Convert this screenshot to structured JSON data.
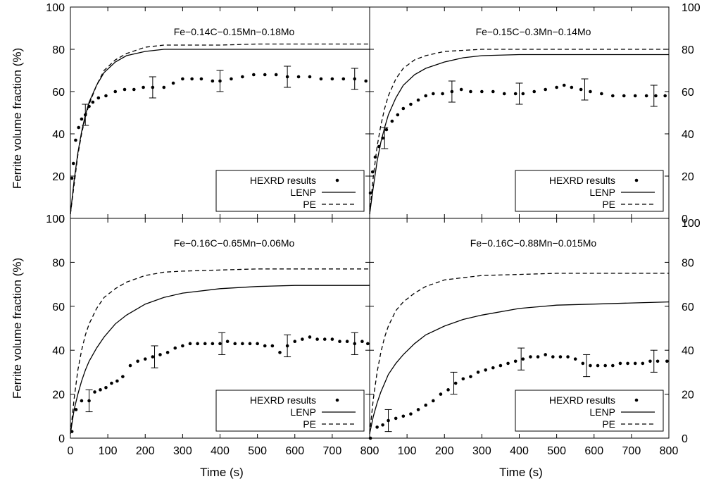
{
  "figure": {
    "ylabel": "Ferrite volume fraction (%)",
    "xlabel": "Time (s)",
    "colors": {
      "ink": "#000000",
      "background": "#ffffff"
    }
  },
  "chart_data": [
    {
      "type": "scatter",
      "title": "Fe−0.14C−0.15Mn−0.18Mo",
      "xlabel": "Time (s)",
      "ylabel": "Ferrite volume fraction (%)",
      "xlim": [
        0,
        800
      ],
      "ylim": [
        0,
        100
      ],
      "xticks": [
        "0",
        "100",
        "200",
        "300",
        "400",
        "500",
        "600",
        "700",
        "800"
      ],
      "yticks": [
        "0",
        "20",
        "40",
        "60",
        "80",
        "100"
      ],
      "legend_position": "bottom-right",
      "series": [
        {
          "name": "HEXRD results",
          "style": "points",
          "x": [
            4,
            8,
            14,
            22,
            30,
            40,
            50,
            60,
            75,
            95,
            120,
            145,
            170,
            195,
            220,
            250,
            275,
            300,
            325,
            350,
            380,
            400,
            430,
            460,
            490,
            520,
            550,
            580,
            610,
            640,
            670,
            700,
            730,
            760,
            790
          ],
          "y": [
            19,
            26,
            37,
            43,
            47,
            49,
            53,
            55,
            57,
            58,
            60,
            61,
            61,
            62,
            62,
            62,
            64,
            66,
            66,
            66,
            65,
            65,
            66,
            67,
            68,
            68,
            68,
            67,
            67,
            67,
            66,
            66,
            66,
            66,
            65
          ]
        },
        {
          "name": "LENP",
          "style": "solid",
          "x": [
            0,
            10,
            20,
            30,
            40,
            50,
            70,
            90,
            120,
            150,
            200,
            250,
            300,
            400,
            500,
            600,
            700,
            800
          ],
          "y": [
            2,
            18,
            31,
            41,
            49,
            55,
            63,
            69,
            74,
            77,
            79,
            80,
            80,
            80,
            80,
            80,
            80,
            80
          ]
        },
        {
          "name": "PE",
          "style": "dashed",
          "x": [
            0,
            10,
            20,
            30,
            40,
            50,
            70,
            90,
            120,
            150,
            200,
            250,
            300,
            400,
            500,
            600,
            700,
            800
          ],
          "y": [
            2,
            16,
            30,
            40,
            48,
            54,
            63,
            70,
            75,
            78,
            81,
            82,
            82,
            82,
            82.5,
            82.5,
            82.5,
            82.5
          ]
        }
      ],
      "error_bars": [
        {
          "x": 40,
          "y": 49,
          "err": 5
        },
        {
          "x": 220,
          "y": 62,
          "err": 5
        },
        {
          "x": 400,
          "y": 65,
          "err": 5
        },
        {
          "x": 580,
          "y": 67,
          "err": 5
        },
        {
          "x": 760,
          "y": 66,
          "err": 5
        }
      ]
    },
    {
      "type": "scatter",
      "title": "Fe−0.15C−0.3Mn−0.14Mo",
      "xlabel": "Time (s)",
      "ylabel": "Ferrite volume fraction (%)",
      "xlim": [
        0,
        800
      ],
      "ylim": [
        0,
        100
      ],
      "xticks": [
        "0",
        "100",
        "200",
        "300",
        "400",
        "500",
        "600",
        "700",
        "800"
      ],
      "yticks": [
        "0",
        "20",
        "40",
        "60",
        "80",
        "100"
      ],
      "legend_position": "bottom-right",
      "series": [
        {
          "name": "HEXRD results",
          "style": "points",
          "x": [
            2,
            8,
            15,
            25,
            35,
            45,
            60,
            75,
            90,
            110,
            130,
            150,
            170,
            195,
            220,
            245,
            270,
            300,
            330,
            360,
            390,
            410,
            440,
            470,
            500,
            520,
            540,
            565,
            590,
            620,
            650,
            680,
            710,
            740,
            765,
            790
          ],
          "y": [
            12,
            22,
            29,
            34,
            38,
            42,
            46,
            49,
            52,
            54,
            56,
            58,
            59,
            59,
            60,
            61,
            60,
            60,
            60,
            59,
            59,
            59,
            60,
            61,
            62,
            63,
            62,
            61,
            60,
            59,
            58,
            58,
            58,
            58,
            58,
            58
          ]
        },
        {
          "name": "LENP",
          "style": "solid",
          "x": [
            0,
            10,
            20,
            30,
            40,
            50,
            70,
            90,
            120,
            150,
            200,
            250,
            300,
            400,
            500,
            600,
            700,
            800
          ],
          "y": [
            2,
            15,
            27,
            36,
            43,
            49,
            57,
            63,
            68,
            71,
            74,
            76,
            77,
            77.5,
            77.5,
            77.5,
            77.5,
            77.5
          ]
        },
        {
          "name": "PE",
          "style": "dashed",
          "x": [
            0,
            10,
            20,
            30,
            40,
            50,
            70,
            90,
            120,
            150,
            200,
            250,
            300,
            400,
            500,
            600,
            700,
            800
          ],
          "y": [
            2,
            20,
            34,
            44,
            52,
            58,
            66,
            71,
            75,
            77,
            79,
            79.5,
            80,
            80,
            80,
            80,
            80,
            80
          ]
        }
      ],
      "error_bars": [
        {
          "x": 40,
          "y": 38,
          "err": 5
        },
        {
          "x": 220,
          "y": 60,
          "err": 5
        },
        {
          "x": 400,
          "y": 59,
          "err": 5
        },
        {
          "x": 575,
          "y": 61,
          "err": 5
        },
        {
          "x": 760,
          "y": 58,
          "err": 5
        }
      ]
    },
    {
      "type": "scatter",
      "title": "Fe−0.16C−0.65Mn−0.06Mo",
      "xlabel": "Time (s)",
      "ylabel": "Ferrite volume fraction (%)",
      "xlim": [
        0,
        800
      ],
      "ylim": [
        0,
        100
      ],
      "xticks": [
        "0",
        "100",
        "200",
        "300",
        "400",
        "500",
        "600",
        "700",
        "800"
      ],
      "yticks": [
        "0",
        "20",
        "40",
        "60",
        "80",
        "100"
      ],
      "legend_position": "bottom-right",
      "series": [
        {
          "name": "HEXRD results",
          "style": "points",
          "x": [
            4,
            15,
            30,
            50,
            65,
            80,
            95,
            110,
            125,
            140,
            160,
            180,
            200,
            220,
            240,
            260,
            280,
            300,
            320,
            340,
            360,
            380,
            400,
            420,
            440,
            460,
            480,
            500,
            520,
            540,
            560,
            580,
            600,
            620,
            640,
            660,
            680,
            700,
            720,
            740,
            760,
            780,
            795
          ],
          "y": [
            3,
            13,
            17,
            17,
            21,
            22,
            23,
            25,
            26,
            28,
            33,
            35,
            36,
            37,
            38,
            39,
            41,
            42,
            43,
            43,
            43,
            43,
            43,
            44,
            43,
            43,
            43,
            43,
            42,
            42,
            39,
            42,
            44,
            45,
            46,
            45,
            45,
            45,
            44,
            44,
            43,
            44,
            43
          ]
        },
        {
          "name": "LENP",
          "style": "solid",
          "x": [
            0,
            10,
            20,
            30,
            40,
            50,
            70,
            90,
            120,
            150,
            200,
            250,
            300,
            400,
            500,
            600,
            700,
            800
          ],
          "y": [
            2,
            13,
            20,
            26,
            31,
            35,
            41,
            46,
            52,
            56,
            61,
            64,
            66,
            68,
            69,
            69.5,
            69.5,
            69.5
          ]
        },
        {
          "name": "PE",
          "style": "dashed",
          "x": [
            0,
            10,
            20,
            30,
            40,
            50,
            70,
            90,
            120,
            150,
            200,
            250,
            300,
            400,
            500,
            600,
            700,
            800
          ],
          "y": [
            2,
            18,
            31,
            40,
            47,
            52,
            59,
            64,
            68,
            71,
            74,
            75.5,
            76,
            76.5,
            77,
            77,
            77,
            77
          ]
        }
      ],
      "error_bars": [
        {
          "x": 50,
          "y": 17,
          "err": 5
        },
        {
          "x": 225,
          "y": 37,
          "err": 5
        },
        {
          "x": 405,
          "y": 43,
          "err": 5
        },
        {
          "x": 580,
          "y": 42,
          "err": 5
        },
        {
          "x": 760,
          "y": 43,
          "err": 5
        }
      ]
    },
    {
      "type": "scatter",
      "title": "Fe−0.16C−0.88Mn−0.015Mo",
      "xlabel": "Time (s)",
      "ylabel": "Ferrite volume fraction (%)",
      "xlim": [
        0,
        800
      ],
      "ylim": [
        0,
        100
      ],
      "xticks": [
        "0",
        "100",
        "200",
        "300",
        "400",
        "500",
        "600",
        "700",
        "800"
      ],
      "yticks": [
        "0",
        "20",
        "40",
        "60",
        "80",
        "100"
      ],
      "legend_position": "bottom-right",
      "series": [
        {
          "name": "HEXRD results",
          "style": "points",
          "x": [
            2,
            20,
            35,
            50,
            70,
            90,
            110,
            130,
            150,
            170,
            190,
            210,
            230,
            250,
            270,
            290,
            310,
            330,
            350,
            370,
            390,
            410,
            430,
            450,
            470,
            490,
            510,
            530,
            550,
            570,
            590,
            610,
            630,
            650,
            670,
            690,
            710,
            730,
            750,
            770,
            795
          ],
          "y": [
            0,
            5,
            6,
            8,
            9,
            10,
            11,
            13,
            15,
            17,
            20,
            22,
            25,
            27,
            28,
            30,
            31,
            32,
            33,
            34,
            35,
            36,
            37,
            37,
            38,
            37,
            37,
            37,
            36,
            34,
            33,
            33,
            33,
            33,
            34,
            34,
            34,
            34,
            35,
            35,
            35
          ]
        },
        {
          "name": "LENP",
          "style": "solid",
          "x": [
            0,
            10,
            20,
            30,
            40,
            50,
            70,
            90,
            120,
            150,
            200,
            250,
            300,
            400,
            500,
            600,
            700,
            800
          ],
          "y": [
            2,
            10,
            16,
            21,
            25,
            29,
            34,
            38,
            43,
            47,
            51,
            54,
            56,
            59,
            60.5,
            61,
            61.5,
            62
          ]
        },
        {
          "name": "PE",
          "style": "dashed",
          "x": [
            0,
            10,
            20,
            30,
            40,
            50,
            70,
            90,
            120,
            150,
            200,
            250,
            300,
            400,
            500,
            600,
            700,
            800
          ],
          "y": [
            2,
            18,
            30,
            39,
            46,
            51,
            58,
            62,
            66,
            69,
            72,
            73,
            74,
            74.5,
            75,
            75,
            75,
            75
          ]
        }
      ],
      "error_bars": [
        {
          "x": 50,
          "y": 8,
          "err": 5
        },
        {
          "x": 225,
          "y": 25,
          "err": 5
        },
        {
          "x": 405,
          "y": 36,
          "err": 5
        },
        {
          "x": 580,
          "y": 33,
          "err": 5
        },
        {
          "x": 760,
          "y": 35,
          "err": 5
        }
      ]
    }
  ]
}
